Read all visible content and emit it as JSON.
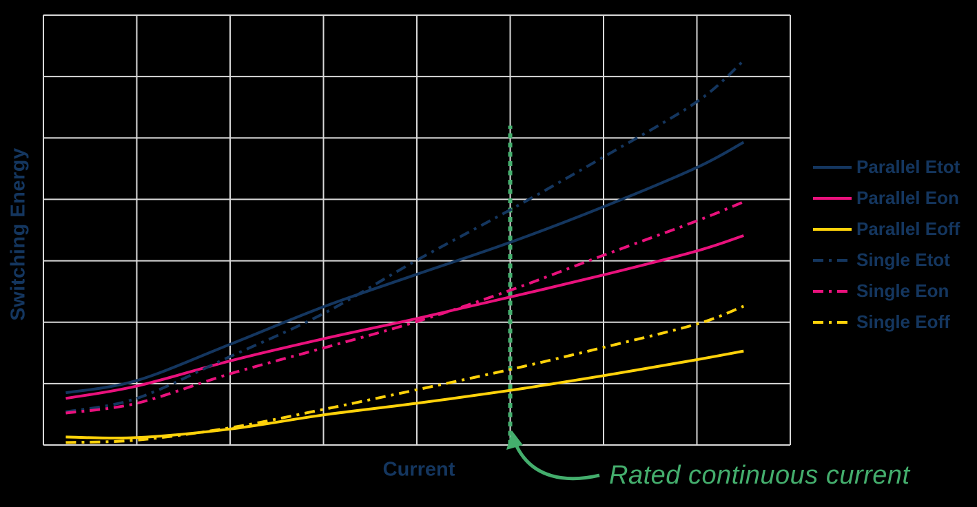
{
  "colors": {
    "background": "#000000",
    "grid": "#d9d9d9",
    "navy": "#14365f",
    "pink": "#e9117c",
    "yellow": "#ffd20a",
    "green": "#44ae6d",
    "label_text": "#14365f"
  },
  "axes": {
    "x_label": "Current",
    "y_label": "Switching Energy"
  },
  "legend": {
    "position": "right",
    "items": [
      {
        "label": "Parallel Etot",
        "color": "#14365f",
        "style": "solid"
      },
      {
        "label": "Parallel Eon",
        "color": "#e9117c",
        "style": "solid"
      },
      {
        "label": "Parallel Eoff",
        "color": "#ffd20a",
        "style": "solid"
      },
      {
        "label": "Single Etot",
        "color": "#14365f",
        "style": "dashdot"
      },
      {
        "label": "Single Eon",
        "color": "#e9117c",
        "style": "dashdot"
      },
      {
        "label": "Single Eoff",
        "color": "#ffd20a",
        "style": "dashdot"
      }
    ]
  },
  "annotation": {
    "label": "Rated continuous current",
    "color": "#44ae6d",
    "x": 5.0,
    "line_y_range": [
      0,
      5.2
    ],
    "line_style": "dotted"
  },
  "chart_data": {
    "type": "line",
    "title": "",
    "xlabel": "Current",
    "ylabel": "Switching Energy",
    "xlim": [
      0,
      8
    ],
    "ylim": [
      0,
      7
    ],
    "grid": true,
    "grid_cols": 8,
    "grid_rows": 7,
    "tick_labels": "none (axes unlabeled, arbitrary units)",
    "legend_position": "right",
    "x": [
      0.24,
      1.0,
      2.0,
      3.0,
      4.0,
      5.0,
      6.0,
      7.0,
      7.5
    ],
    "series": [
      {
        "name": "Parallel Etot",
        "color": "#14365f",
        "style": "solid",
        "values": [
          0.85,
          1.05,
          1.64,
          2.25,
          2.78,
          3.3,
          3.88,
          4.52,
          4.93
        ]
      },
      {
        "name": "Parallel Eon",
        "color": "#e9117c",
        "style": "solid",
        "values": [
          0.76,
          0.96,
          1.37,
          1.73,
          2.06,
          2.41,
          2.77,
          3.16,
          3.41
        ]
      },
      {
        "name": "Parallel Eoff",
        "color": "#ffd20a",
        "style": "solid",
        "values": [
          0.13,
          0.12,
          0.26,
          0.49,
          0.68,
          0.89,
          1.13,
          1.39,
          1.53
        ]
      },
      {
        "name": "Single Etot",
        "color": "#14365f",
        "style": "dashdot",
        "values": [
          0.54,
          0.76,
          1.44,
          2.14,
          3.01,
          3.83,
          4.69,
          5.59,
          6.26
        ]
      },
      {
        "name": "Single Eon",
        "color": "#e9117c",
        "style": "dashdot",
        "values": [
          0.52,
          0.68,
          1.16,
          1.58,
          2.01,
          2.52,
          3.09,
          3.65,
          3.96
        ]
      },
      {
        "name": "Single Eoff",
        "color": "#ffd20a",
        "style": "dashdot",
        "values": [
          0.04,
          0.08,
          0.28,
          0.58,
          0.9,
          1.23,
          1.59,
          1.97,
          2.26
        ]
      }
    ],
    "annotation": {
      "label": "Rated continuous current",
      "x": 5.0
    }
  }
}
